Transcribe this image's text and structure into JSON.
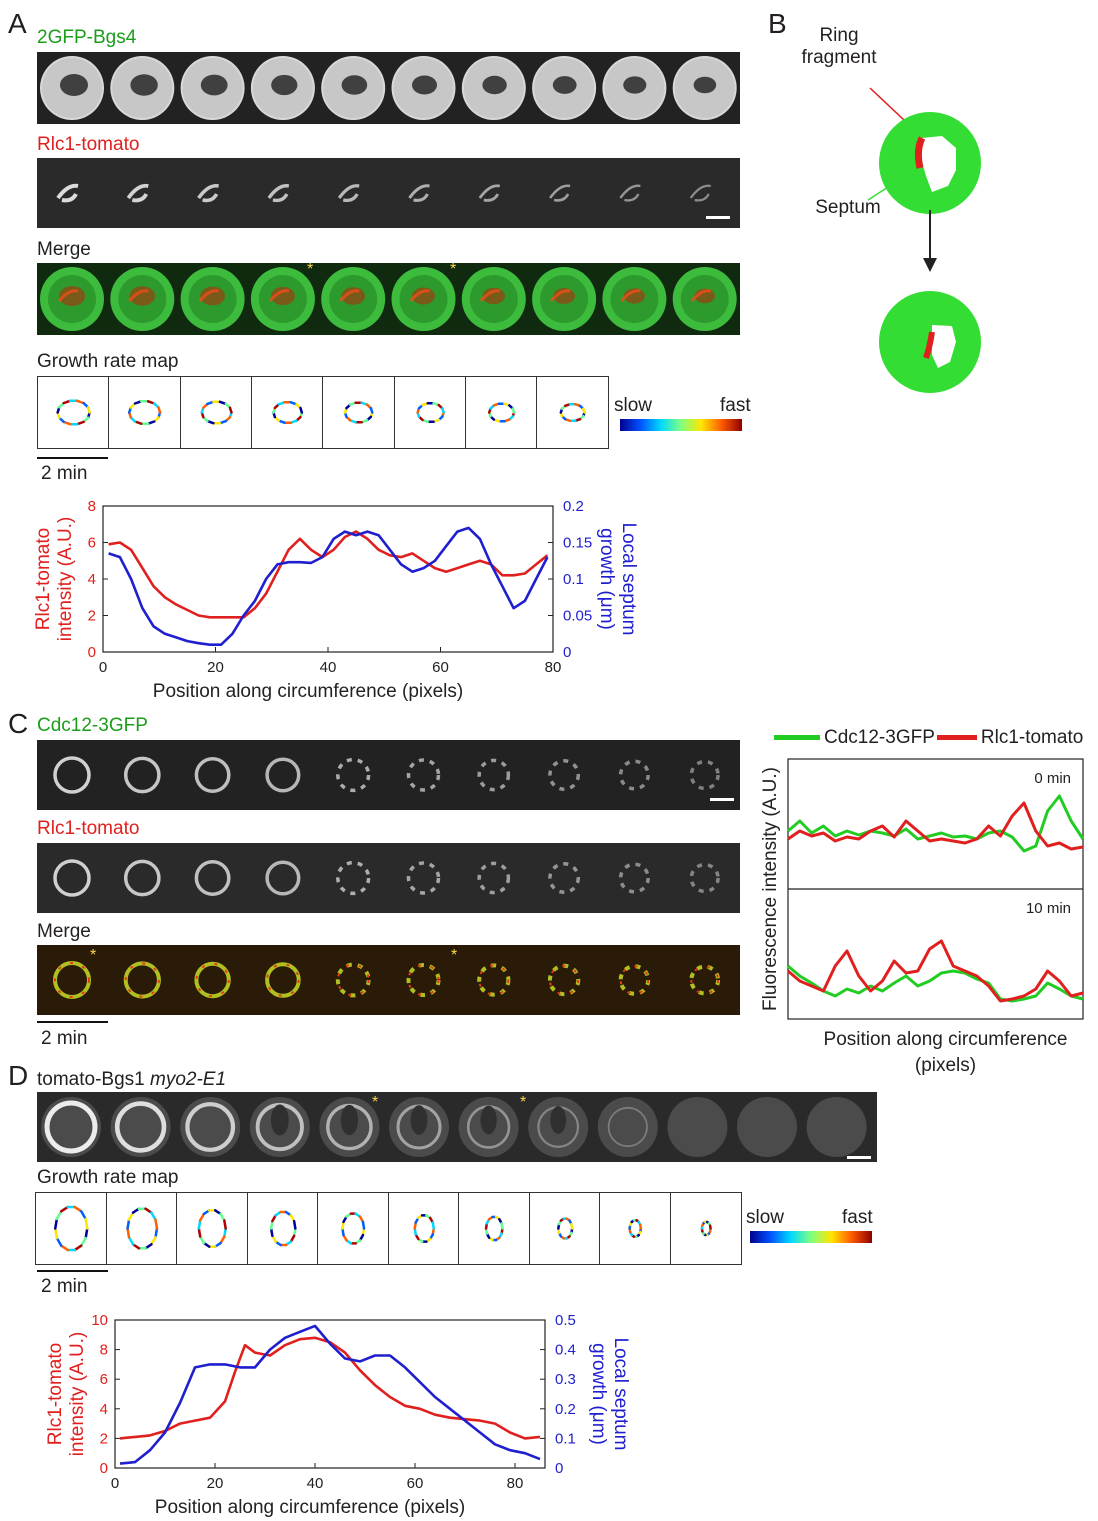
{
  "panelA": {
    "label": "A",
    "ch1": "2GFP-Bgs4",
    "ch2": "Rlc1-tomato",
    "ch3": "Merge",
    "growth_title": "Growth rate map",
    "slow": "slow",
    "fast": "fast",
    "time_scale": "2 min"
  },
  "panelB": {
    "label": "B",
    "ring": "Ring\nfragment",
    "septum": "Septum"
  },
  "panelC": {
    "label": "C",
    "ch1": "Cdc12-3GFP",
    "ch2": "Rlc1-tomato",
    "ch3": "Merge",
    "time_scale": "2 min",
    "legend_green": "Cdc12-3GFP",
    "legend_red": "Rlc1-tomato",
    "t0": "0 min",
    "t10": "10 min",
    "ylabel": "Fluorescence intensity (A.U.)",
    "xlabel": "Position along circumference\n(pixels)"
  },
  "panelD": {
    "label": "D",
    "title_a": "tomato-Bgs1 ",
    "title_b": "myo2-E1",
    "growth_title": "Growth rate map",
    "slow": "slow",
    "fast": "fast",
    "time_scale": "2 min"
  },
  "colors": {
    "green": "#22cc22",
    "red": "#e0201f",
    "blue": "#1f1fcf"
  },
  "chart_data": [
    {
      "type": "line",
      "id": "A",
      "xlabel": "Position along circumference (pixels)",
      "ylabel_left": "Rlc1-tomato\nintensity (A.U.)",
      "ylabel_right": "Local septum\ngrowth (μm)",
      "xlim": [
        0,
        80
      ],
      "ylim_left": [
        0,
        8
      ],
      "ylim_right": [
        0,
        0.2
      ],
      "xticks": [
        0,
        20,
        40,
        60,
        80
      ],
      "yticks_left": [
        0,
        2,
        4,
        6,
        8
      ],
      "yticks_right": [
        0,
        0.05,
        0.1,
        0.15,
        0.2
      ],
      "yticklabels_right": [
        "0",
        "0.05",
        "0.1",
        "0.15",
        "0.2"
      ],
      "series": [
        {
          "axis": "left",
          "color": "#e0201f",
          "x": [
            1,
            3,
            5,
            7,
            9,
            11,
            13,
            15,
            17,
            19,
            21,
            23,
            25,
            27,
            29,
            31,
            33,
            35,
            37,
            39,
            41,
            43,
            45,
            47,
            49,
            51,
            53,
            55,
            57,
            59,
            61,
            63,
            65,
            67,
            69,
            71,
            73,
            75,
            77,
            79
          ],
          "y": [
            5.9,
            6.0,
            5.6,
            4.6,
            3.6,
            3.0,
            2.6,
            2.3,
            2.0,
            1.9,
            1.9,
            1.9,
            1.9,
            2.4,
            3.2,
            4.4,
            5.6,
            6.2,
            5.6,
            5.2,
            5.6,
            6.3,
            6.6,
            6.2,
            5.6,
            5.3,
            5.2,
            5.4,
            5.0,
            4.6,
            4.4,
            4.6,
            4.8,
            5.0,
            4.8,
            4.2,
            4.2,
            4.3,
            4.8,
            5.3
          ]
        },
        {
          "axis": "right",
          "color": "#1f1fcf",
          "x": [
            1,
            3,
            5,
            7,
            9,
            11,
            13,
            15,
            17,
            19,
            21,
            23,
            25,
            27,
            29,
            31,
            33,
            35,
            37,
            39,
            41,
            43,
            45,
            47,
            49,
            51,
            53,
            55,
            57,
            59,
            61,
            63,
            65,
            67,
            69,
            71,
            73,
            75,
            77,
            79
          ],
          "y": [
            0.135,
            0.13,
            0.1,
            0.06,
            0.035,
            0.025,
            0.02,
            0.015,
            0.012,
            0.01,
            0.01,
            0.025,
            0.05,
            0.07,
            0.1,
            0.12,
            0.123,
            0.123,
            0.122,
            0.13,
            0.155,
            0.165,
            0.16,
            0.165,
            0.16,
            0.14,
            0.12,
            0.11,
            0.115,
            0.125,
            0.145,
            0.165,
            0.17,
            0.155,
            0.12,
            0.09,
            0.06,
            0.07,
            0.1,
            0.13
          ]
        }
      ]
    },
    {
      "type": "line",
      "id": "C-0min",
      "title": "0 min",
      "series": [
        {
          "name": "Cdc12-3GFP",
          "color": "#22cc22",
          "x": [
            0,
            4,
            8,
            12,
            16,
            20,
            24,
            28,
            32,
            36,
            40,
            44,
            48,
            52,
            56,
            60,
            64,
            68,
            72,
            76,
            80,
            84,
            88,
            92,
            96,
            100
          ],
          "y": [
            0.5,
            0.6,
            0.48,
            0.55,
            0.45,
            0.5,
            0.46,
            0.5,
            0.48,
            0.45,
            0.52,
            0.42,
            0.45,
            0.48,
            0.44,
            0.45,
            0.42,
            0.48,
            0.5,
            0.44,
            0.3,
            0.35,
            0.7,
            0.85,
            0.6,
            0.42
          ]
        },
        {
          "name": "Rlc1-tomato",
          "color": "#e0201f",
          "x": [
            0,
            4,
            8,
            12,
            16,
            20,
            24,
            28,
            32,
            36,
            40,
            44,
            48,
            52,
            56,
            60,
            64,
            68,
            72,
            76,
            80,
            84,
            88,
            92,
            96,
            100
          ],
          "y": [
            0.42,
            0.5,
            0.45,
            0.48,
            0.4,
            0.44,
            0.42,
            0.5,
            0.55,
            0.44,
            0.6,
            0.5,
            0.4,
            0.42,
            0.4,
            0.38,
            0.42,
            0.55,
            0.45,
            0.65,
            0.78,
            0.5,
            0.35,
            0.38,
            0.32,
            0.34
          ]
        }
      ]
    },
    {
      "type": "line",
      "id": "C-10min",
      "title": "10 min",
      "series": [
        {
          "name": "Cdc12-3GFP",
          "color": "#22cc22",
          "x": [
            0,
            4,
            8,
            12,
            16,
            20,
            24,
            28,
            32,
            36,
            40,
            44,
            48,
            52,
            56,
            60,
            64,
            68,
            72,
            76,
            80,
            84,
            88,
            92,
            96,
            100
          ],
          "y": [
            0.45,
            0.35,
            0.28,
            0.2,
            0.15,
            0.22,
            0.18,
            0.25,
            0.2,
            0.28,
            0.35,
            0.25,
            0.3,
            0.38,
            0.4,
            0.38,
            0.32,
            0.28,
            0.12,
            0.1,
            0.12,
            0.15,
            0.28,
            0.22,
            0.15,
            0.12
          ]
        },
        {
          "name": "Rlc1-tomato",
          "color": "#e0201f",
          "x": [
            0,
            4,
            8,
            12,
            16,
            20,
            24,
            28,
            32,
            36,
            40,
            44,
            48,
            52,
            56,
            60,
            64,
            68,
            72,
            76,
            80,
            84,
            88,
            92,
            96,
            100
          ],
          "y": [
            0.4,
            0.3,
            0.25,
            0.2,
            0.45,
            0.6,
            0.35,
            0.2,
            0.3,
            0.5,
            0.38,
            0.4,
            0.62,
            0.7,
            0.45,
            0.4,
            0.35,
            0.25,
            0.1,
            0.12,
            0.15,
            0.22,
            0.4,
            0.3,
            0.15,
            0.18
          ]
        }
      ]
    },
    {
      "type": "line",
      "id": "D",
      "xlabel": "Position along circumference (pixels)",
      "ylabel_left": "Rlc1-tomato\nintensity (A.U.)",
      "ylabel_right": "Local septum\ngrowth (μm)",
      "xlim": [
        0,
        86
      ],
      "ylim_left": [
        0,
        10
      ],
      "ylim_right": [
        0,
        0.5
      ],
      "xticks": [
        0,
        20,
        40,
        60,
        80
      ],
      "yticks_left": [
        0,
        2,
        4,
        6,
        8,
        10
      ],
      "yticks_right": [
        0,
        0.1,
        0.2,
        0.3,
        0.4,
        0.5
      ],
      "yticklabels_right": [
        "0",
        "0.1",
        "0.2",
        "0.3",
        "0.4",
        "0.5"
      ],
      "series": [
        {
          "axis": "left",
          "color": "#e0201f",
          "x": [
            1,
            4,
            7,
            10,
            13,
            16,
            19,
            22,
            24,
            26,
            28,
            31,
            34,
            37,
            40,
            43,
            46,
            49,
            52,
            55,
            58,
            61,
            64,
            67,
            70,
            73,
            76,
            79,
            82,
            85
          ],
          "y": [
            2.0,
            2.1,
            2.2,
            2.5,
            3.0,
            3.2,
            3.4,
            4.5,
            6.5,
            8.3,
            7.8,
            7.6,
            8.3,
            8.7,
            8.8,
            8.5,
            7.8,
            6.6,
            5.6,
            4.8,
            4.2,
            4.0,
            3.6,
            3.4,
            3.3,
            3.2,
            3.0,
            2.4,
            2.0,
            2.1
          ]
        },
        {
          "axis": "right",
          "color": "#1f1fcf",
          "x": [
            1,
            4,
            7,
            10,
            13,
            16,
            19,
            22,
            25,
            28,
            31,
            34,
            37,
            40,
            43,
            46,
            49,
            52,
            55,
            58,
            61,
            64,
            67,
            70,
            73,
            76,
            79,
            82,
            85
          ],
          "y": [
            0.015,
            0.02,
            0.06,
            0.12,
            0.22,
            0.34,
            0.35,
            0.35,
            0.34,
            0.34,
            0.4,
            0.44,
            0.46,
            0.48,
            0.42,
            0.37,
            0.36,
            0.38,
            0.38,
            0.34,
            0.29,
            0.24,
            0.2,
            0.16,
            0.12,
            0.08,
            0.06,
            0.05,
            0.03
          ]
        }
      ]
    }
  ]
}
